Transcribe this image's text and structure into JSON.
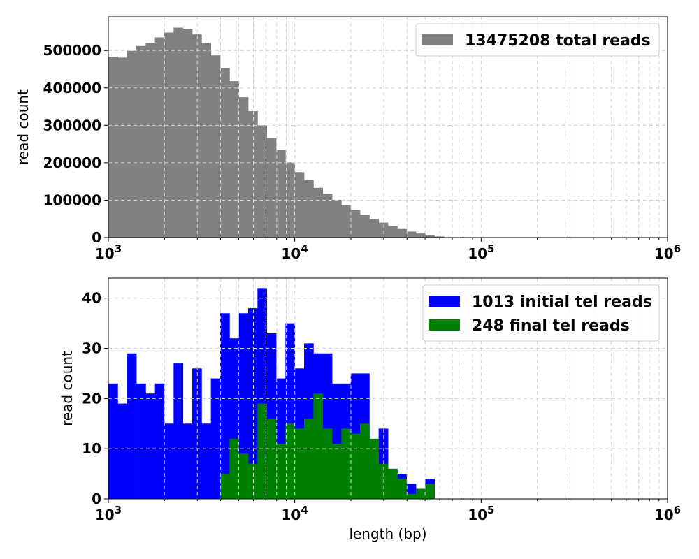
{
  "chart_data": [
    {
      "type": "bar",
      "xscale": "log",
      "xlim": [
        1000,
        1000000
      ],
      "ylim": [
        0,
        590000
      ],
      "ylabel": "read count",
      "xlabel": "",
      "grid": true,
      "legend_position": "top-right",
      "y_ticks": [
        0,
        100000,
        200000,
        300000,
        400000,
        500000
      ],
      "y_tick_labels": [
        "0",
        "100000",
        "200000",
        "300000",
        "400000",
        "500000"
      ],
      "x_ticks": [
        1000,
        10000,
        100000,
        1000000
      ],
      "x_tick_labels": [
        {
          "base": "10",
          "exp": "3"
        },
        {
          "base": "10",
          "exp": "4"
        },
        {
          "base": "10",
          "exp": "5"
        },
        {
          "base": "10",
          "exp": "6"
        }
      ],
      "bin_edges": [
        1000,
        1122,
        1259,
        1413,
        1585,
        1778,
        1995,
        2239,
        2512,
        2818,
        3162,
        3548,
        3981,
        4467,
        5012,
        5623,
        6310,
        7079,
        7943,
        8913,
        10000,
        11220,
        12589,
        14125,
        15849,
        17783,
        19953,
        22387,
        25119,
        28184,
        31623,
        35481,
        39811,
        44668,
        50119,
        56234,
        63096,
        70795,
        79433
      ],
      "series": [
        {
          "name": "13475208 total reads",
          "color": "#808080",
          "values": [
            483000,
            481000,
            499000,
            512000,
            521000,
            535000,
            548000,
            561000,
            558000,
            543000,
            520000,
            487000,
            453000,
            418000,
            375000,
            338000,
            300000,
            266000,
            234000,
            201000,
            175000,
            153000,
            133000,
            117000,
            101000,
            87000,
            74000,
            61000,
            50000,
            40000,
            31000,
            23000,
            16000,
            11000,
            6000,
            3000,
            1000,
            500
          ]
        }
      ]
    },
    {
      "type": "bar",
      "xscale": "log",
      "xlim": [
        1000,
        1000000
      ],
      "ylim": [
        0,
        44
      ],
      "ylabel": "read count",
      "xlabel": "length (bp)",
      "grid": true,
      "legend_position": "top-right",
      "y_ticks": [
        0,
        10,
        20,
        30,
        40
      ],
      "y_tick_labels": [
        "0",
        "10",
        "20",
        "30",
        "40"
      ],
      "x_ticks": [
        1000,
        10000,
        100000,
        1000000
      ],
      "x_tick_labels": [
        {
          "base": "10",
          "exp": "3"
        },
        {
          "base": "10",
          "exp": "4"
        },
        {
          "base": "10",
          "exp": "5"
        },
        {
          "base": "10",
          "exp": "6"
        }
      ],
      "bin_edges": [
        1000,
        1122,
        1259,
        1413,
        1585,
        1778,
        1995,
        2239,
        2512,
        2818,
        3162,
        3548,
        3981,
        4467,
        5012,
        5623,
        6310,
        7079,
        7943,
        8913,
        10000,
        11220,
        12589,
        14125,
        15849,
        17783,
        19953,
        22387,
        25119,
        28184,
        31623,
        35481,
        39811,
        44668,
        50119,
        56234,
        63096
      ],
      "series": [
        {
          "name": "1013 initial tel reads",
          "color": "#0000ff",
          "values": [
            23,
            19,
            29,
            23,
            21,
            23,
            15,
            27,
            15,
            26,
            15,
            24,
            37,
            32,
            37,
            38,
            42,
            33,
            24,
            35,
            26,
            31,
            29,
            29,
            23,
            23,
            25,
            25,
            10,
            14,
            6,
            5,
            3,
            2,
            4,
            0
          ]
        },
        {
          "name": "248 final tel reads",
          "color": "#008000",
          "values": [
            0,
            0,
            0,
            0,
            0,
            0,
            0,
            0,
            0,
            0,
            0,
            0,
            5,
            12,
            9,
            7,
            19,
            16,
            11,
            15,
            14,
            16,
            21,
            14,
            11,
            14,
            13,
            15,
            12,
            7,
            6,
            4,
            1,
            2,
            3,
            0
          ]
        }
      ]
    }
  ]
}
